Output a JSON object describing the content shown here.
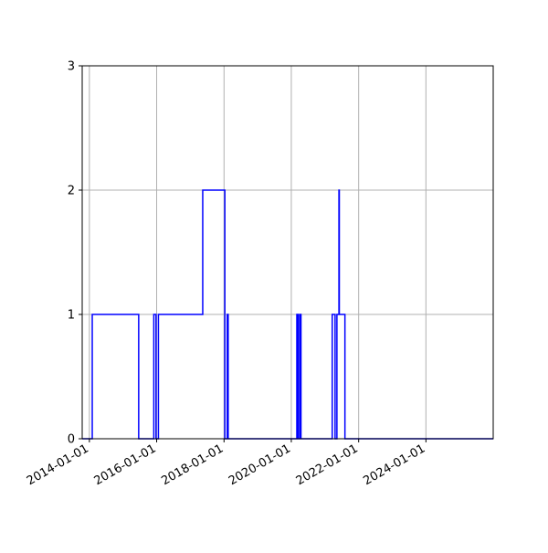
{
  "chart_data": {
    "type": "line",
    "drawstyle": "steps-post",
    "title": "",
    "xlabel": "",
    "ylabel": "",
    "grid": true,
    "xlim": [
      "2013-10-15",
      "2025-12-31"
    ],
    "ylim": [
      0,
      3
    ],
    "x_ticks": [
      "2014-01-01",
      "2016-01-01",
      "2018-01-01",
      "2020-01-01",
      "2022-01-01",
      "2024-01-01"
    ],
    "x_tick_labels": [
      "2014-01-01",
      "2016-01-01",
      "2018-01-01",
      "2020-01-01",
      "2022-01-01",
      "2024-01-01"
    ],
    "y_ticks": [
      0,
      1,
      2,
      3
    ],
    "y_tick_labels": [
      "0",
      "1",
      "2",
      "3"
    ],
    "line_color": "#0000ff",
    "grid_color": "#b0b0b0",
    "series": [
      {
        "x": [
          "2013-10-15",
          "2014-02-01",
          "2015-06-20",
          "2015-12-01",
          "2015-12-25",
          "2016-01-20",
          "2016-02-01",
          "2017-05-15",
          "2018-01-10",
          "2018-02-05",
          "2018-02-15",
          "2018-02-25",
          "2020-03-01",
          "2020-03-15",
          "2020-04-01",
          "2020-04-15",
          "2021-03-20",
          "2021-04-20",
          "2021-05-10",
          "2021-06-01",
          "2021-06-05",
          "2021-06-20",
          "2021-07-01",
          "2021-08-05",
          "2025-12-31"
        ],
        "y": [
          0,
          1,
          0,
          1,
          0,
          1,
          1,
          2,
          0,
          1,
          0,
          0,
          1,
          0,
          1,
          0,
          1,
          0,
          1,
          2,
          1,
          1,
          1,
          0,
          0
        ]
      }
    ]
  }
}
